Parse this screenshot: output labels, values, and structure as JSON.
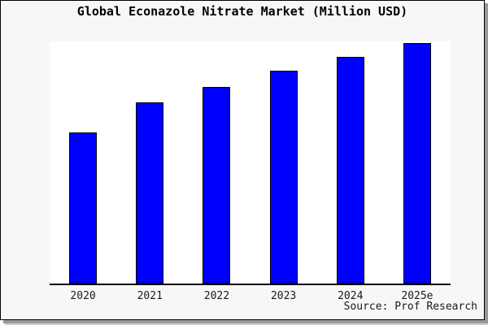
{
  "chart_data": {
    "type": "bar",
    "title": "Global Econazole Nitrate Market (Million USD)",
    "categories": [
      "2020",
      "2021",
      "2022",
      "2023",
      "2024",
      "2025e"
    ],
    "values": [
      62.5,
      75,
      81.3,
      87.8,
      93.5,
      99.5
    ],
    "values_note": "y-axis has no tick labels; values estimated as percent of plot height",
    "xlabel": "",
    "ylabel": "",
    "ylim": [
      0,
      100
    ],
    "grid": false,
    "legend": false,
    "bar_color": "#0000ff",
    "bar_border_color": "#000000"
  },
  "source": {
    "text": "Source: Prof Research"
  },
  "colors": {
    "card_background": "#f7f7f7",
    "plot_background": "#ffffff",
    "border": "#000000",
    "shadow": "#9a9a9a",
    "text": "#1a1a1a"
  }
}
